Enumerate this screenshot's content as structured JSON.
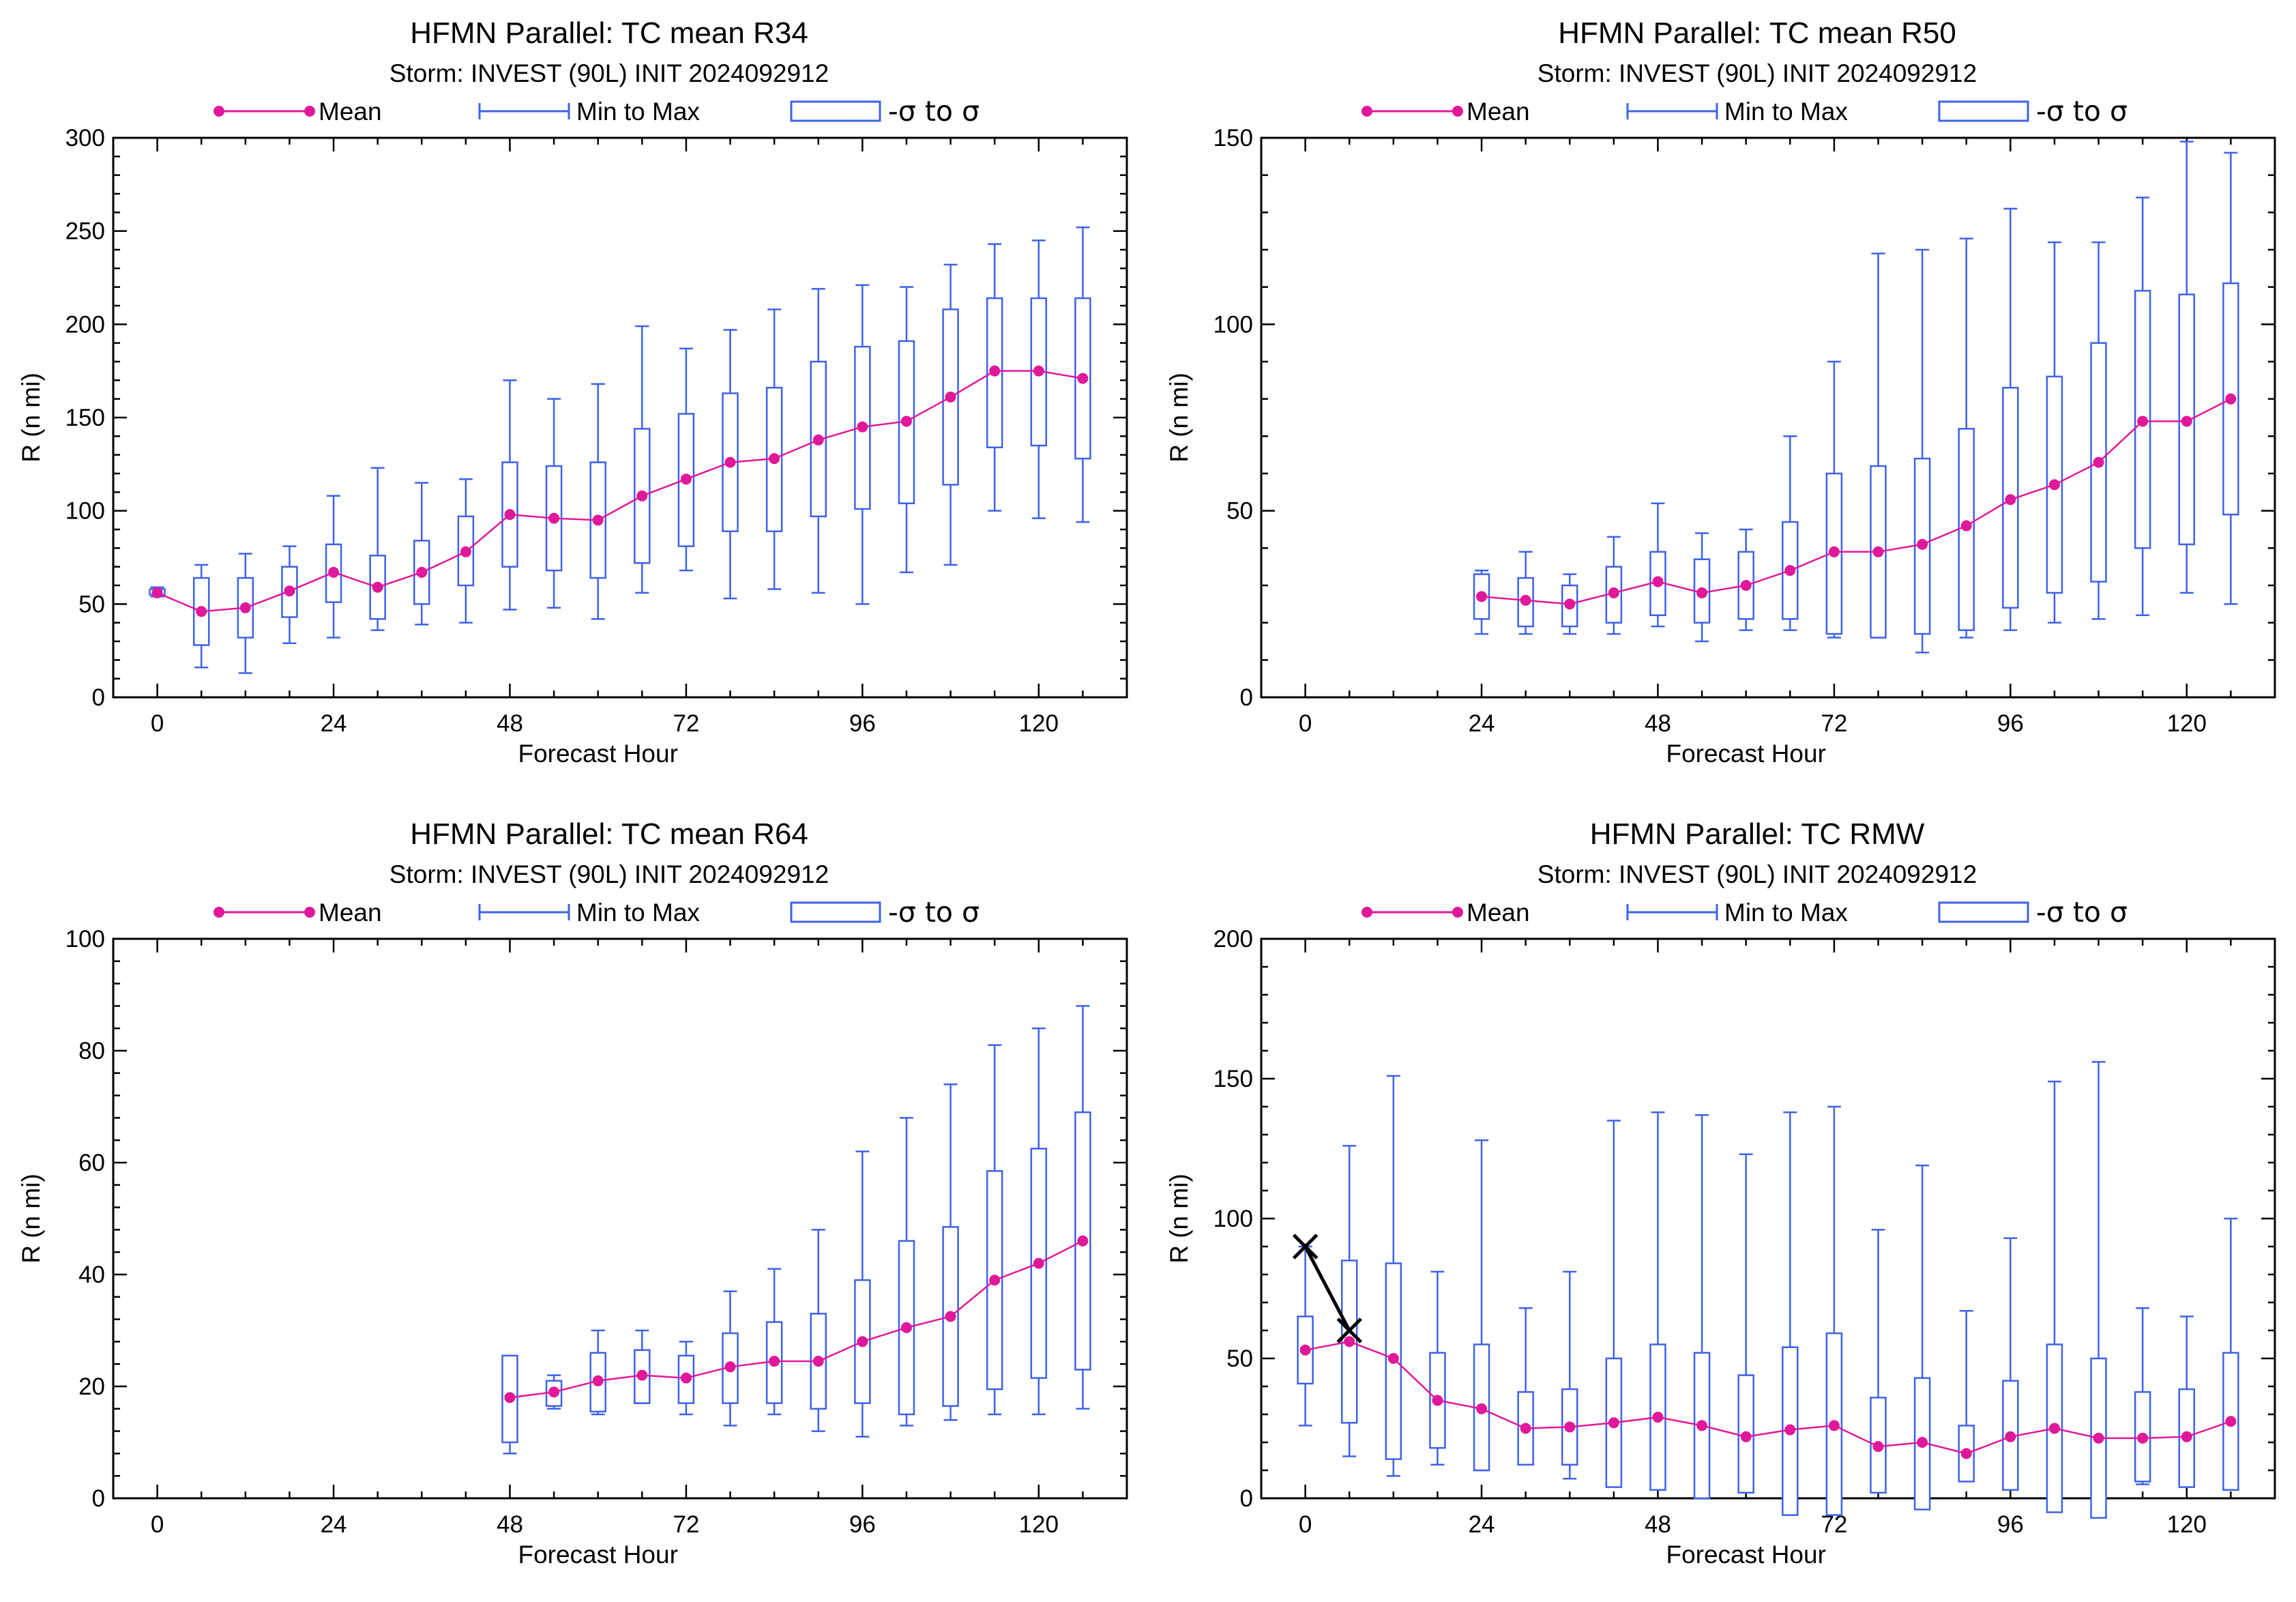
{
  "legend": {
    "mean": "Mean",
    "minmax": "Min to Max",
    "sigma": "-σ to σ"
  },
  "colors": {
    "mean": "#E0189A",
    "box": "#3E62E8",
    "best_track": "#000000"
  },
  "chart_data": [
    {
      "type": "box",
      "title": "HFMN Parallel: TC mean R34",
      "subtitle": "Storm: INVEST (90L) INIT 2024092912",
      "xlabel": "Forecast Hour",
      "ylabel": "R (n mi)",
      "xlim": [
        -6,
        132
      ],
      "ylim": [
        0,
        300
      ],
      "xticks": [
        0,
        24,
        48,
        72,
        96,
        120
      ],
      "yticks": [
        0,
        50,
        100,
        150,
        200,
        250,
        300
      ],
      "grid": false,
      "legend_position": "top",
      "x": [
        0,
        6,
        12,
        18,
        24,
        30,
        36,
        42,
        48,
        54,
        60,
        66,
        72,
        78,
        84,
        90,
        96,
        102,
        108,
        114,
        120,
        126
      ],
      "mean": [
        56,
        46,
        48,
        57,
        67,
        59,
        67,
        78,
        98,
        96,
        95,
        108,
        117,
        126,
        128,
        138,
        145,
        148,
        161,
        175,
        175,
        171
      ],
      "min": [
        54,
        16,
        13,
        29,
        32,
        36,
        39,
        40,
        47,
        48,
        42,
        56,
        68,
        53,
        58,
        56,
        50,
        67,
        71,
        100,
        96,
        94
      ],
      "max": [
        59,
        71,
        77,
        81,
        108,
        123,
        115,
        117,
        170,
        160,
        168,
        199,
        187,
        197,
        208,
        219,
        221,
        220,
        232,
        243,
        245,
        252
      ],
      "sigma_low": [
        55,
        28,
        32,
        43,
        51,
        42,
        50,
        60,
        70,
        68,
        64,
        72,
        81,
        89,
        89,
        97,
        101,
        104,
        114,
        134,
        135,
        128
      ],
      "sigma_high": [
        58,
        64,
        64,
        70,
        82,
        76,
        84,
        97,
        126,
        124,
        126,
        144,
        152,
        163,
        166,
        180,
        188,
        191,
        208,
        214,
        214,
        214
      ]
    },
    {
      "type": "box",
      "title": "HFMN Parallel: TC mean R50",
      "subtitle": "Storm: INVEST (90L) INIT 2024092912",
      "xlabel": "Forecast Hour",
      "ylabel": "R (n mi)",
      "xlim": [
        -6,
        132
      ],
      "ylim": [
        0,
        150
      ],
      "xticks": [
        0,
        24,
        48,
        72,
        96,
        120
      ],
      "yticks": [
        0,
        50,
        100,
        150
      ],
      "grid": false,
      "legend_position": "top",
      "x": [
        24,
        30,
        36,
        42,
        48,
        54,
        60,
        66,
        72,
        78,
        84,
        90,
        96,
        102,
        108,
        114,
        120,
        126
      ],
      "mean": [
        27,
        26,
        25,
        28,
        31,
        28,
        30,
        34,
        39,
        39,
        41,
        46,
        53,
        57,
        63,
        74,
        74,
        80
      ],
      "min": [
        17,
        17,
        17,
        17,
        19,
        15,
        18,
        18,
        16,
        16,
        12,
        16,
        18,
        20,
        21,
        22,
        28,
        25
      ],
      "max": [
        34,
        39,
        33,
        43,
        52,
        44,
        45,
        70,
        90,
        119,
        120,
        123,
        131,
        122,
        122,
        134,
        149,
        146
      ],
      "sigma_low": [
        21,
        19,
        19,
        20,
        22,
        20,
        21,
        21,
        17,
        16,
        17,
        18,
        24,
        28,
        31,
        40,
        41,
        49
      ],
      "sigma_high": [
        33,
        32,
        30,
        35,
        39,
        37,
        39,
        47,
        60,
        62,
        64,
        72,
        83,
        86,
        95,
        109,
        108,
        111
      ]
    },
    {
      "type": "box",
      "title": "HFMN Parallel: TC mean R64",
      "subtitle": "Storm: INVEST (90L) INIT 2024092912",
      "xlabel": "Forecast Hour",
      "ylabel": "R (n mi)",
      "xlim": [
        -6,
        132
      ],
      "ylim": [
        0,
        100
      ],
      "xticks": [
        0,
        24,
        48,
        72,
        96,
        120
      ],
      "yticks": [
        0,
        20,
        40,
        60,
        80,
        100
      ],
      "grid": false,
      "legend_position": "top",
      "x": [
        48,
        54,
        60,
        66,
        72,
        78,
        84,
        90,
        96,
        102,
        108,
        114,
        120,
        126
      ],
      "mean": [
        18,
        19,
        21,
        22,
        21.5,
        23.5,
        24.5,
        24.5,
        28,
        30.5,
        32.5,
        39,
        42,
        46
      ],
      "min": [
        8,
        16,
        15,
        17,
        15,
        13,
        15,
        12,
        11,
        13,
        14,
        15,
        15,
        16
      ],
      "max": [
        25,
        22,
        30,
        30,
        28,
        37,
        41,
        48,
        62,
        68,
        74,
        81,
        84,
        88
      ],
      "sigma_low": [
        10,
        16.5,
        15.5,
        17,
        17,
        17,
        17,
        16,
        17,
        15,
        16.5,
        19.5,
        21.5,
        23
      ],
      "sigma_high": [
        25.5,
        21,
        26,
        26.5,
        25.5,
        29.5,
        31.5,
        33,
        39,
        46,
        48.5,
        58.5,
        62.5,
        69
      ]
    },
    {
      "type": "box",
      "title": "HFMN Parallel: TC RMW",
      "subtitle": "Storm: INVEST (90L) INIT 2024092912",
      "xlabel": "Forecast Hour",
      "ylabel": "R (n mi)",
      "xlim": [
        -6,
        132
      ],
      "ylim": [
        0,
        200
      ],
      "xticks": [
        0,
        24,
        48,
        72,
        96,
        120
      ],
      "yticks": [
        0,
        50,
        100,
        150,
        200
      ],
      "grid": false,
      "legend_position": "top",
      "x": [
        0,
        6,
        12,
        18,
        24,
        30,
        36,
        42,
        48,
        54,
        60,
        66,
        72,
        78,
        84,
        90,
        96,
        102,
        108,
        114,
        120,
        126
      ],
      "mean": [
        53,
        56,
        50,
        35,
        32,
        25,
        25.5,
        27,
        29,
        26,
        22,
        24.5,
        26,
        18.5,
        20,
        16,
        22,
        25,
        21.5,
        21.5,
        22,
        27.5
      ],
      "min": [
        26,
        15,
        8,
        12,
        10,
        12,
        7,
        10,
        4,
        11,
        8,
        5,
        5,
        4,
        3,
        7,
        6,
        3,
        3,
        5,
        6,
        4
      ],
      "max": [
        90,
        126,
        151,
        81,
        128,
        68,
        81,
        135,
        138,
        137,
        123,
        138,
        140,
        96,
        119,
        67,
        93,
        149,
        156,
        68,
        65,
        100
      ],
      "sigma_low": [
        41,
        27,
        14,
        18,
        10,
        12,
        12,
        4,
        3,
        0,
        2,
        -6,
        -6,
        2,
        -4,
        6,
        3,
        -5,
        -7,
        6,
        4,
        3
      ],
      "sigma_high": [
        65,
        85,
        84,
        52,
        55,
        38,
        39,
        50,
        55,
        52,
        44,
        54,
        59,
        36,
        43,
        26,
        42,
        55,
        50,
        38,
        39,
        52
      ],
      "best_track": {
        "x": [
          0,
          6
        ],
        "y": [
          90,
          60
        ]
      }
    }
  ]
}
